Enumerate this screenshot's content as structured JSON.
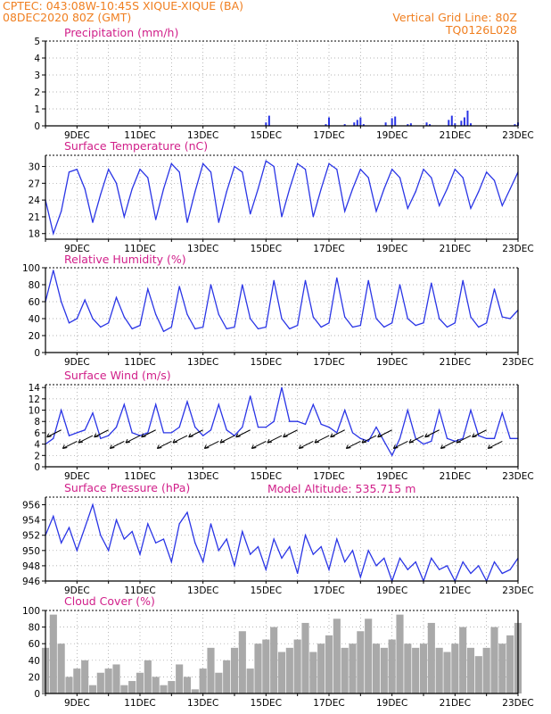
{
  "header": {
    "left_line1": "CPTEC:   043:08W-10:45S  XIQUE-XIQUE (BA)",
    "left_line2": "08DEC2020 80Z (GMT)",
    "right_line1": "Vertical Grid Line: 80Z",
    "right_line2": "TQ0126L028",
    "model_altitude": "Model Altitude: 535.715 m"
  },
  "colors": {
    "header": "#f07f20",
    "title": "#d1208a",
    "series": "#2a35e6",
    "cloud": "#a9a9a9",
    "grid": "#9a9a9a"
  },
  "x_ticks": [
    "9DEC",
    "11DEC",
    "13DEC",
    "15DEC",
    "17DEC",
    "19DEC",
    "21DEC",
    "23DEC"
  ],
  "chart_data": [
    {
      "type": "bar",
      "title": "Precipitation (mm/h)",
      "ylim": [
        0,
        5
      ],
      "yticks": [
        "0",
        "1",
        "2",
        "3",
        "4",
        "5"
      ],
      "x_range": [
        "8DEC",
        "23DEC"
      ],
      "grid": true,
      "x": [
        15.0,
        15.1,
        16.9,
        17.0,
        17.5,
        17.8,
        17.9,
        18.0,
        18.1,
        18.8,
        19.0,
        19.1,
        19.5,
        19.6,
        20.1,
        20.2,
        20.8,
        20.9,
        21.0,
        21.2,
        21.3,
        21.4,
        21.5,
        22.9,
        23.0
      ],
      "values": [
        0.2,
        0.6,
        0.1,
        0.5,
        0.1,
        0.2,
        0.35,
        0.5,
        0.1,
        0.2,
        0.45,
        0.55,
        0.1,
        0.15,
        0.2,
        0.1,
        0.35,
        0.6,
        0.15,
        0.3,
        0.5,
        0.9,
        0.15,
        0.1,
        0.2
      ]
    },
    {
      "type": "line",
      "title": "Surface Temperature (nC)",
      "ylim": [
        17,
        32
      ],
      "yticks": [
        "18",
        "21",
        "24",
        "27",
        "30"
      ],
      "x_range": [
        "8DEC",
        "23DEC"
      ],
      "grid": true,
      "x": [
        8.0,
        8.25,
        8.5,
        8.75,
        9.0,
        9.25,
        9.5,
        9.75,
        10.0,
        10.25,
        10.5,
        10.75,
        11.0,
        11.25,
        11.5,
        11.75,
        12.0,
        12.25,
        12.5,
        12.75,
        13.0,
        13.25,
        13.5,
        13.75,
        14.0,
        14.25,
        14.5,
        14.75,
        15.0,
        15.25,
        15.5,
        15.75,
        16.0,
        16.25,
        16.5,
        16.75,
        17.0,
        17.25,
        17.5,
        17.75,
        18.0,
        18.25,
        18.5,
        18.75,
        19.0,
        19.25,
        19.5,
        19.75,
        20.0,
        20.25,
        20.5,
        20.75,
        21.0,
        21.25,
        21.5,
        21.75,
        22.0,
        22.25,
        22.5,
        22.75,
        23.0
      ],
      "values": [
        24.0,
        18.0,
        22.0,
        29.0,
        29.5,
        26.0,
        20.0,
        25.0,
        29.5,
        27.0,
        21.0,
        26.0,
        29.5,
        28.0,
        20.5,
        26.0,
        30.5,
        29.0,
        20.0,
        25.5,
        30.5,
        29.0,
        20.0,
        25.5,
        30.0,
        29.0,
        21.5,
        26.0,
        31.0,
        30.0,
        21.0,
        26.0,
        30.5,
        29.5,
        21.0,
        26.0,
        30.5,
        29.5,
        22.0,
        26.0,
        29.5,
        28.0,
        22.0,
        26.0,
        29.5,
        28.0,
        22.5,
        25.5,
        29.5,
        28.0,
        23.0,
        26.0,
        29.5,
        28.0,
        22.5,
        25.5,
        29.0,
        27.5,
        23.0,
        26.0,
        29.0
      ]
    },
    {
      "type": "line",
      "title": "Relative Humidity (%)",
      "ylim": [
        0,
        100
      ],
      "yticks": [
        "0",
        "20",
        "40",
        "60",
        "80",
        "100"
      ],
      "x_range": [
        "8DEC",
        "23DEC"
      ],
      "grid": true,
      "x": [
        8.0,
        8.25,
        8.5,
        8.75,
        9.0,
        9.25,
        9.5,
        9.75,
        10.0,
        10.25,
        10.5,
        10.75,
        11.0,
        11.25,
        11.5,
        11.75,
        12.0,
        12.25,
        12.5,
        12.75,
        13.0,
        13.25,
        13.5,
        13.75,
        14.0,
        14.25,
        14.5,
        14.75,
        15.0,
        15.25,
        15.5,
        15.75,
        16.0,
        16.25,
        16.5,
        16.75,
        17.0,
        17.25,
        17.5,
        17.75,
        18.0,
        18.25,
        18.5,
        18.75,
        19.0,
        19.25,
        19.5,
        19.75,
        20.0,
        20.25,
        20.5,
        20.75,
        21.0,
        21.25,
        21.5,
        21.75,
        22.0,
        22.25,
        22.5,
        22.75,
        23.0
      ],
      "values": [
        60.0,
        97.0,
        60.0,
        35.0,
        40.0,
        62.0,
        40.0,
        30.0,
        35.0,
        65.0,
        42.0,
        28.0,
        32.0,
        75.0,
        45.0,
        25.0,
        30.0,
        78.0,
        45.0,
        28.0,
        30.0,
        80.0,
        45.0,
        28.0,
        30.0,
        80.0,
        40.0,
        28.0,
        30.0,
        85.0,
        40.0,
        28.0,
        32.0,
        85.0,
        42.0,
        30.0,
        35.0,
        88.0,
        42.0,
        30.0,
        32.0,
        85.0,
        40.0,
        30.0,
        35.0,
        80.0,
        40.0,
        32.0,
        35.0,
        82.0,
        40.0,
        30.0,
        35.0,
        85.0,
        42.0,
        30.0,
        35.0,
        75.0,
        42.0,
        40.0,
        50.0
      ]
    },
    {
      "type": "line",
      "title": "Surface Wind (m/s)",
      "ylim": [
        0,
        14.5
      ],
      "yticks": [
        "0",
        "2",
        "4",
        "6",
        "8",
        "10",
        "12",
        "14"
      ],
      "x_range": [
        "8DEC",
        "23DEC"
      ],
      "grid": true,
      "x": [
        8.0,
        8.25,
        8.5,
        8.75,
        9.0,
        9.25,
        9.5,
        9.75,
        10.0,
        10.25,
        10.5,
        10.75,
        11.0,
        11.25,
        11.5,
        11.75,
        12.0,
        12.25,
        12.5,
        12.75,
        13.0,
        13.25,
        13.5,
        13.75,
        14.0,
        14.25,
        14.5,
        14.75,
        15.0,
        15.25,
        15.5,
        15.75,
        16.0,
        16.25,
        16.5,
        16.75,
        17.0,
        17.25,
        17.5,
        17.75,
        18.0,
        18.25,
        18.5,
        18.75,
        19.0,
        19.25,
        19.5,
        19.75,
        20.0,
        20.25,
        20.5,
        20.75,
        21.0,
        21.25,
        21.5,
        21.75,
        22.0,
        22.25,
        22.5,
        22.75,
        23.0
      ],
      "values": [
        4.0,
        5.0,
        10.0,
        5.5,
        6.0,
        6.5,
        9.5,
        5.0,
        5.5,
        7.0,
        11.0,
        6.0,
        5.5,
        6.0,
        11.0,
        6.0,
        6.0,
        7.0,
        11.5,
        7.0,
        5.5,
        6.5,
        11.0,
        6.5,
        5.5,
        7.0,
        12.5,
        7.0,
        7.0,
        8.0,
        14.0,
        8.0,
        8.0,
        7.5,
        11.0,
        7.5,
        7.0,
        6.0,
        10.0,
        6.0,
        5.0,
        4.5,
        7.0,
        4.5,
        2.0,
        5.0,
        10.0,
        5.0,
        4.0,
        4.5,
        10.0,
        5.0,
        4.5,
        5.0,
        10.0,
        5.5,
        5.0,
        5.0,
        9.5,
        5.0,
        5.0
      ],
      "barbs": "wind direction arrows along series"
    },
    {
      "type": "line",
      "title": "Surface Pressure (hPa)",
      "ylim": [
        946,
        957
      ],
      "yticks": [
        "946",
        "948",
        "950",
        "952",
        "954",
        "956"
      ],
      "x_range": [
        "8DEC",
        "23DEC"
      ],
      "grid": true,
      "x": [
        8.0,
        8.25,
        8.5,
        8.75,
        9.0,
        9.25,
        9.5,
        9.75,
        10.0,
        10.25,
        10.5,
        10.75,
        11.0,
        11.25,
        11.5,
        11.75,
        12.0,
        12.25,
        12.5,
        12.75,
        13.0,
        13.25,
        13.5,
        13.75,
        14.0,
        14.25,
        14.5,
        14.75,
        15.0,
        15.25,
        15.5,
        15.75,
        16.0,
        16.25,
        16.5,
        16.75,
        17.0,
        17.25,
        17.5,
        17.75,
        18.0,
        18.25,
        18.5,
        18.75,
        19.0,
        19.25,
        19.5,
        19.75,
        20.0,
        20.25,
        20.5,
        20.75,
        21.0,
        21.25,
        21.5,
        21.75,
        22.0,
        22.25,
        22.5,
        22.75,
        23.0
      ],
      "values": [
        952.0,
        954.5,
        951.0,
        953.0,
        950.0,
        953.0,
        956.0,
        952.0,
        950.0,
        954.0,
        951.5,
        952.5,
        949.5,
        953.5,
        951.0,
        951.5,
        948.5,
        953.5,
        955.0,
        951.0,
        948.5,
        953.5,
        950.0,
        951.5,
        948.0,
        952.5,
        949.5,
        950.5,
        947.5,
        951.5,
        949.0,
        950.5,
        947.0,
        952.0,
        949.5,
        950.5,
        947.5,
        951.5,
        948.5,
        950.0,
        946.5,
        950.0,
        948.0,
        949.0,
        946.0,
        949.0,
        947.5,
        948.5,
        946.0,
        949.0,
        947.5,
        948.0,
        946.0,
        948.5,
        947.0,
        948.0,
        946.0,
        948.5,
        947.0,
        947.5,
        949.0
      ]
    },
    {
      "type": "bar",
      "title": "Cloud Cover (%)",
      "ylim": [
        0,
        100
      ],
      "yticks": [
        "0",
        "20",
        "40",
        "60",
        "80",
        "100"
      ],
      "x_range": [
        "8DEC",
        "23DEC"
      ],
      "grid": true,
      "x": [
        8.0,
        8.25,
        8.5,
        8.75,
        9.0,
        9.25,
        9.5,
        9.75,
        10.0,
        10.25,
        10.5,
        10.75,
        11.0,
        11.25,
        11.5,
        11.75,
        12.0,
        12.25,
        12.5,
        12.75,
        13.0,
        13.25,
        13.5,
        13.75,
        14.0,
        14.25,
        14.5,
        14.75,
        15.0,
        15.25,
        15.5,
        15.75,
        16.0,
        16.25,
        16.5,
        16.75,
        17.0,
        17.25,
        17.5,
        17.75,
        18.0,
        18.25,
        18.5,
        18.75,
        19.0,
        19.25,
        19.5,
        19.75,
        20.0,
        20.25,
        20.5,
        20.75,
        21.0,
        21.25,
        21.5,
        21.75,
        22.0,
        22.25,
        22.5,
        22.75,
        23.0
      ],
      "values": [
        55.0,
        95.0,
        60.0,
        20.0,
        30.0,
        40.0,
        10.0,
        25.0,
        30.0,
        35.0,
        10.0,
        15.0,
        25.0,
        40.0,
        20.0,
        10.0,
        15.0,
        35.0,
        20.0,
        5.0,
        30.0,
        55.0,
        25.0,
        40.0,
        55.0,
        75.0,
        30.0,
        60.0,
        65.0,
        80.0,
        50.0,
        55.0,
        65.0,
        85.0,
        50.0,
        60.0,
        70.0,
        90.0,
        55.0,
        60.0,
        75.0,
        90.0,
        60.0,
        55.0,
        65.0,
        95.0,
        60.0,
        55.0,
        60.0,
        85.0,
        55.0,
        50.0,
        60.0,
        80.0,
        55.0,
        45.0,
        55.0,
        80.0,
        60.0,
        70.0,
        85.0
      ]
    }
  ]
}
